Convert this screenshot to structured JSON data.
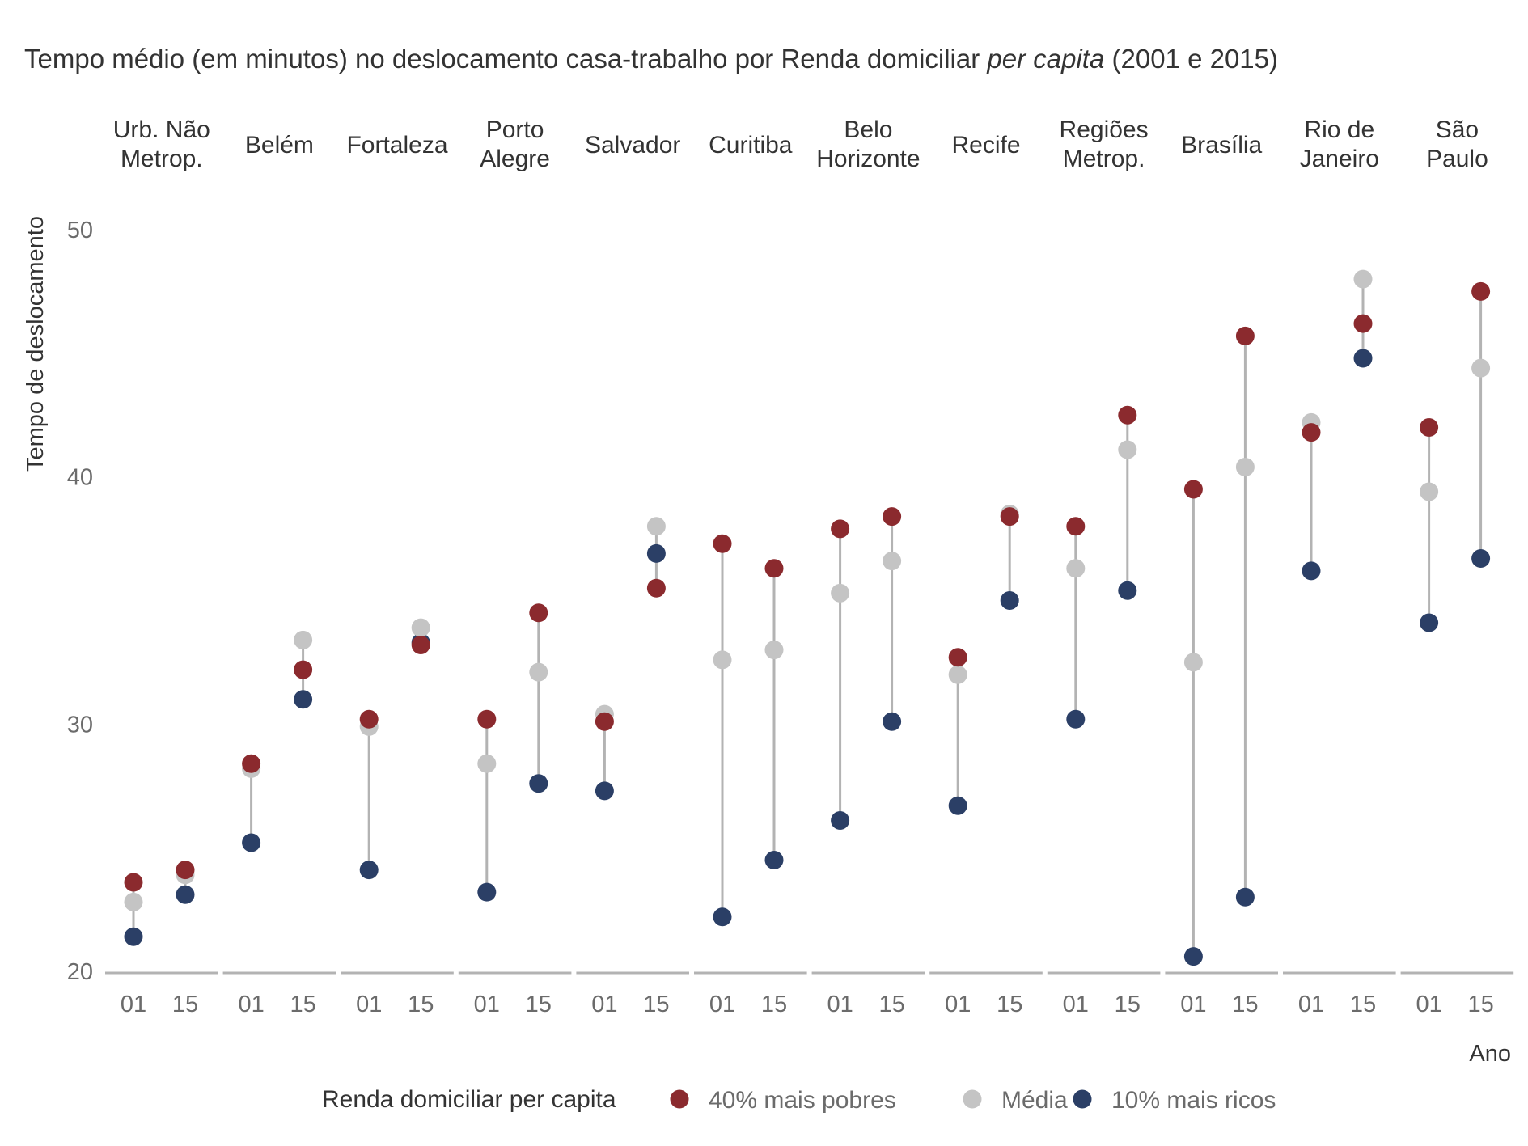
{
  "chart_data": {
    "type": "scatter",
    "title_parts": [
      "Tempo médio (em minutos) no deslocamento casa-trabalho por Renda domiciliar ",
      "per capita",
      " (2001 e 2015)"
    ],
    "ylabel": "Tempo de deslocamento",
    "xlabel": "Ano",
    "ylim": [
      20,
      52
    ],
    "yticks": [
      20,
      30,
      40,
      50
    ],
    "x_tick_labels": [
      "01",
      "15"
    ],
    "grid": false,
    "legend": {
      "position": "bottom",
      "title": "Renda domiciliar per capita",
      "entries": [
        {
          "key": "poor",
          "label": "40% mais pobres",
          "color": "#8B2A2E"
        },
        {
          "key": "avg",
          "label": "Média",
          "color": "#C4C4C4"
        },
        {
          "key": "rich",
          "label": "10% mais ricos",
          "color": "#2B3F66"
        }
      ]
    },
    "colors": {
      "line": "#B3B3B3",
      "axis": "#B3B3B3",
      "text": "#333333",
      "tick_text": "#6B6B6B"
    },
    "panels": [
      {
        "label": [
          "Urb. Não",
          "Metrop."
        ],
        "years": [
          {
            "year": "01",
            "poor": 23.6,
            "avg": 22.8,
            "rich": 21.4
          },
          {
            "year": "15",
            "poor": 24.1,
            "avg": 23.9,
            "rich": 23.1
          }
        ]
      },
      {
        "label": [
          "Belém"
        ],
        "years": [
          {
            "year": "01",
            "poor": 28.4,
            "avg": 28.2,
            "rich": 25.2
          },
          {
            "year": "15",
            "poor": 32.2,
            "avg": 33.4,
            "rich": 31.0
          }
        ]
      },
      {
        "label": [
          "Fortaleza"
        ],
        "years": [
          {
            "year": "01",
            "poor": 30.2,
            "avg": 29.9,
            "rich": 24.1
          },
          {
            "year": "15",
            "poor": 33.2,
            "avg": 33.9,
            "rich": 33.3
          }
        ]
      },
      {
        "label": [
          "Porto",
          "Alegre"
        ],
        "years": [
          {
            "year": "01",
            "poor": 30.2,
            "avg": 28.4,
            "rich": 23.2
          },
          {
            "year": "15",
            "poor": 34.5,
            "avg": 32.1,
            "rich": 27.6
          }
        ]
      },
      {
        "label": [
          "Salvador"
        ],
        "years": [
          {
            "year": "01",
            "poor": 30.1,
            "avg": 30.4,
            "rich": 27.3
          },
          {
            "year": "15",
            "poor": 35.5,
            "avg": 38.0,
            "rich": 36.9
          }
        ]
      },
      {
        "label": [
          "Curitiba"
        ],
        "years": [
          {
            "year": "01",
            "poor": 37.3,
            "avg": 32.6,
            "rich": 22.2
          },
          {
            "year": "15",
            "poor": 36.3,
            "avg": 33.0,
            "rich": 24.5
          }
        ]
      },
      {
        "label": [
          "Belo",
          "Horizonte"
        ],
        "years": [
          {
            "year": "01",
            "poor": 37.9,
            "avg": 35.3,
            "rich": 26.1
          },
          {
            "year": "15",
            "poor": 38.4,
            "avg": 36.6,
            "rich": 30.1
          }
        ]
      },
      {
        "label": [
          "Recife"
        ],
        "years": [
          {
            "year": "01",
            "poor": 32.7,
            "avg": 32.0,
            "rich": 26.7
          },
          {
            "year": "15",
            "poor": 38.4,
            "avg": 38.5,
            "rich": 35.0
          }
        ]
      },
      {
        "label": [
          "Regiões",
          "Metrop."
        ],
        "years": [
          {
            "year": "01",
            "poor": 38.0,
            "avg": 36.3,
            "rich": 30.2
          },
          {
            "year": "15",
            "poor": 42.5,
            "avg": 41.1,
            "rich": 35.4
          }
        ]
      },
      {
        "label": [
          "Brasília"
        ],
        "years": [
          {
            "year": "01",
            "poor": 39.5,
            "avg": 32.5,
            "rich": 20.6
          },
          {
            "year": "15",
            "poor": 45.7,
            "avg": 40.4,
            "rich": 23.0
          }
        ]
      },
      {
        "label": [
          "Rio de",
          "Janeiro"
        ],
        "years": [
          {
            "year": "01",
            "poor": 41.8,
            "avg": 42.2,
            "rich": 36.2
          },
          {
            "year": "15",
            "poor": 46.2,
            "avg": 48.0,
            "rich": 44.8
          }
        ]
      },
      {
        "label": [
          "São",
          "Paulo"
        ],
        "years": [
          {
            "year": "01",
            "poor": 42.0,
            "avg": 39.4,
            "rich": 34.1
          },
          {
            "year": "15",
            "poor": 47.5,
            "avg": 44.4,
            "rich": 36.7
          }
        ]
      }
    ]
  }
}
